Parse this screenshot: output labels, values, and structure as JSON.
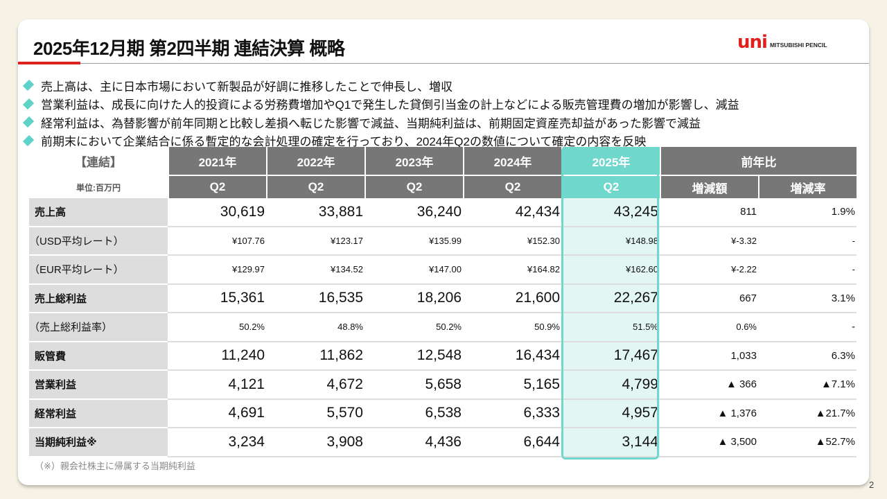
{
  "title": "2025年12月期  第2四半期 連結決算 概略",
  "logo": {
    "mark": "uni",
    "text": "MITSUBISHI PENCIL"
  },
  "colors": {
    "accent": "#6fd7cc",
    "brand": "#e0201c",
    "header": "#777777"
  },
  "bullets": [
    "売上高は、主に日本市場において新製品が好調に推移したことで伸長し、増収",
    "営業利益は、成長に向けた人的投資による労務費増加やQ1で発生した貸倒引当金の計上などによる販売管理費の増加が影響し、減益",
    "経常利益は、為替影響が前年同期と比較し差損へ転じた影響で減益、当期純利益は、前期固定資産売却益があった影響で減益",
    "前期末において企業結合に係る暫定的な会計処理の確定を行っており、2024年Q2の数値について確定の内容を反映"
  ],
  "table": {
    "corner": "【連結】",
    "unit": "単位:百万円",
    "years": [
      "2021年",
      "2022年",
      "2023年",
      "2024年",
      "2025年"
    ],
    "yoy": "前年比",
    "sub": [
      "Q2",
      "Q2",
      "Q2",
      "Q2",
      "Q2",
      "増減額",
      "増減率"
    ],
    "rows": [
      {
        "label": "売上高",
        "style": "big",
        "values": [
          "30,619",
          "33,881",
          "36,240",
          "42,434",
          "43,245",
          "811",
          "1.9%"
        ]
      },
      {
        "label": "（USD平均レート）",
        "style": "sm",
        "values": [
          "¥107.76",
          "¥123.17",
          "¥135.99",
          "¥152.30",
          "¥148.98",
          "¥-3.32",
          "-"
        ]
      },
      {
        "label": "（EUR平均レート）",
        "style": "sm",
        "values": [
          "¥129.97",
          "¥134.52",
          "¥147.00",
          "¥164.82",
          "¥162.60",
          "¥-2.22",
          "-"
        ]
      },
      {
        "label": "売上総利益",
        "style": "big",
        "values": [
          "15,361",
          "16,535",
          "18,206",
          "21,600",
          "22,267",
          "667",
          "3.1%"
        ]
      },
      {
        "label": "（売上総利益率）",
        "style": "sm",
        "values": [
          "50.2%",
          "48.8%",
          "50.2%",
          "50.9%",
          "51.5%",
          "0.6%",
          "-"
        ]
      },
      {
        "label": "販管費",
        "style": "big",
        "values": [
          "11,240",
          "11,862",
          "12,548",
          "16,434",
          "17,467",
          "1,033",
          "6.3%"
        ]
      },
      {
        "label": "営業利益",
        "style": "big",
        "values": [
          "4,121",
          "4,672",
          "5,658",
          "5,165",
          "4,799",
          "▲ 366",
          "▲7.1%"
        ]
      },
      {
        "label": "経常利益",
        "style": "big",
        "values": [
          "4,691",
          "5,570",
          "6,538",
          "6,333",
          "4,957",
          "▲ 1,376",
          "▲21.7%"
        ]
      },
      {
        "label": "当期純利益※",
        "style": "big",
        "values": [
          "3,234",
          "3,908",
          "4,436",
          "6,644",
          "3,144",
          "▲ 3,500",
          "▲52.7%"
        ]
      }
    ]
  },
  "footnote": "（※）親会社株主に帰属する当期純利益",
  "page": "2"
}
